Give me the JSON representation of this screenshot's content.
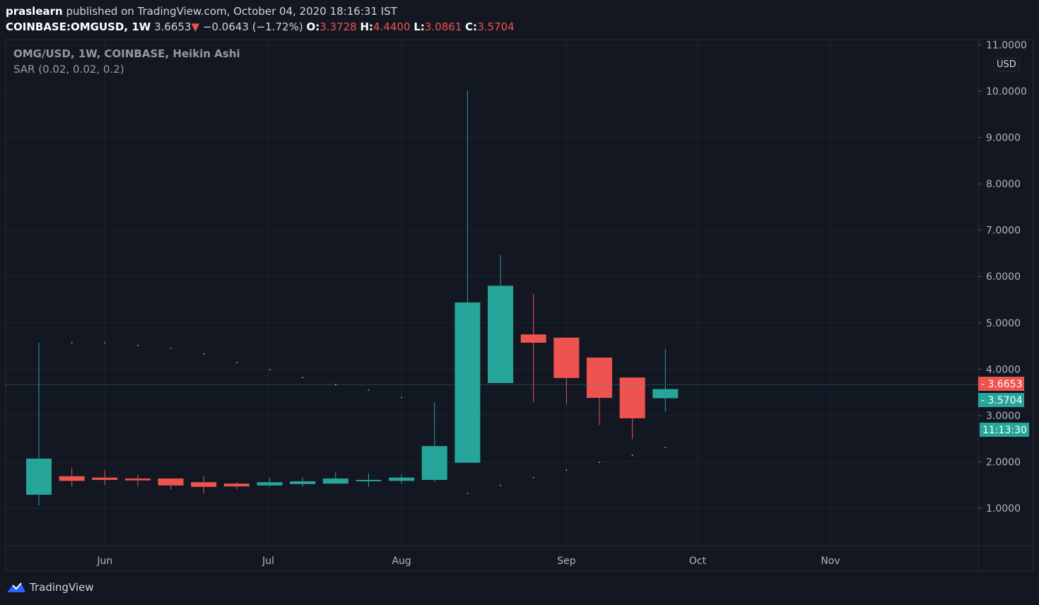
{
  "header": {
    "author": "praslearn",
    "published": "published on TradingView.com, October 04, 2020 18:16:31 IST",
    "symbol": "COINBASE:OMGUSD, 1W",
    "last": "3.6653",
    "change": "−0.0643 (−1.72%)",
    "o_label": "O:",
    "o": "3.3728",
    "h_label": "H:",
    "h": "4.4400",
    "l_label": "L:",
    "l": "3.0861",
    "c_label": "C:",
    "c": "3.5704"
  },
  "legend": {
    "title": "OMG/USD, 1W, COINBASE, Heikin Ashi",
    "indicator": "SAR (0.02, 0.02, 0.2)"
  },
  "currency": "USD",
  "brand": "TradingView",
  "colors": {
    "up": "#26a69a",
    "down": "#ef5350",
    "bg": "#131722",
    "grid": "#1e222d"
  },
  "chart_data": {
    "type": "candlestick",
    "title": "OMG/USD, 1W, COINBASE, Heikin Ashi",
    "y_ticks": [
      "1.0000",
      "2.0000",
      "3.0000",
      "4.0000",
      "5.0000",
      "6.0000",
      "7.0000",
      "8.0000",
      "9.0000",
      "10.0000",
      "11.0000"
    ],
    "ylim": [
      0.2,
      11.0
    ],
    "x_labels": [
      {
        "label": "Jun",
        "index": 2
      },
      {
        "label": "Jul",
        "index": 7
      },
      {
        "label": "Aug",
        "index": 11
      },
      {
        "label": "Sep",
        "index": 16
      },
      {
        "label": "Oct",
        "index": 20
      },
      {
        "label": "Nov",
        "index": 24
      }
    ],
    "candles": [
      {
        "o": 1.29,
        "h": 4.57,
        "l": 1.06,
        "c": 2.07
      },
      {
        "o": 1.69,
        "h": 1.88,
        "l": 1.47,
        "c": 1.59
      },
      {
        "o": 1.66,
        "h": 1.82,
        "l": 1.5,
        "c": 1.61
      },
      {
        "o": 1.64,
        "h": 1.72,
        "l": 1.47,
        "c": 1.6
      },
      {
        "o": 1.64,
        "h": 1.64,
        "l": 1.4,
        "c": 1.49
      },
      {
        "o": 1.56,
        "h": 1.69,
        "l": 1.32,
        "c": 1.46
      },
      {
        "o": 1.53,
        "h": 1.56,
        "l": 1.4,
        "c": 1.47
      },
      {
        "o": 1.49,
        "h": 1.66,
        "l": 1.46,
        "c": 1.56
      },
      {
        "o": 1.52,
        "h": 1.67,
        "l": 1.46,
        "c": 1.58
      },
      {
        "o": 1.53,
        "h": 1.78,
        "l": 1.52,
        "c": 1.64
      },
      {
        "o": 1.58,
        "h": 1.75,
        "l": 1.46,
        "c": 1.61
      },
      {
        "o": 1.59,
        "h": 1.73,
        "l": 1.53,
        "c": 1.66
      },
      {
        "o": 1.61,
        "h": 3.29,
        "l": 1.58,
        "c": 2.34
      },
      {
        "o": 1.98,
        "h": 10.01,
        "l": 1.98,
        "c": 5.44
      },
      {
        "o": 3.7,
        "h": 6.46,
        "l": 3.7,
        "c": 5.8
      },
      {
        "o": 4.75,
        "h": 5.62,
        "l": 3.29,
        "c": 4.57
      },
      {
        "o": 4.68,
        "h": 4.68,
        "l": 3.24,
        "c": 3.81
      },
      {
        "o": 4.25,
        "h": 4.25,
        "l": 2.8,
        "c": 3.38
      },
      {
        "o": 3.82,
        "h": 3.82,
        "l": 2.49,
        "c": 2.94
      },
      {
        "o": 3.3728,
        "h": 4.44,
        "l": 3.0861,
        "c": 3.5704
      }
    ],
    "sar": [
      null,
      4.57,
      4.57,
      4.51,
      4.45,
      4.33,
      4.14,
      3.99,
      3.82,
      3.67,
      3.55,
      3.39,
      null,
      1.32,
      1.49,
      1.66,
      1.82,
      1.99,
      2.14,
      2.31
    ],
    "price_labels": [
      {
        "text": "3.6653",
        "value": 3.6653,
        "color": "#ef5350"
      },
      {
        "text": "3.5704",
        "value": 3.5704,
        "color": "#26a69a"
      }
    ],
    "countdown": "11:13:30"
  }
}
